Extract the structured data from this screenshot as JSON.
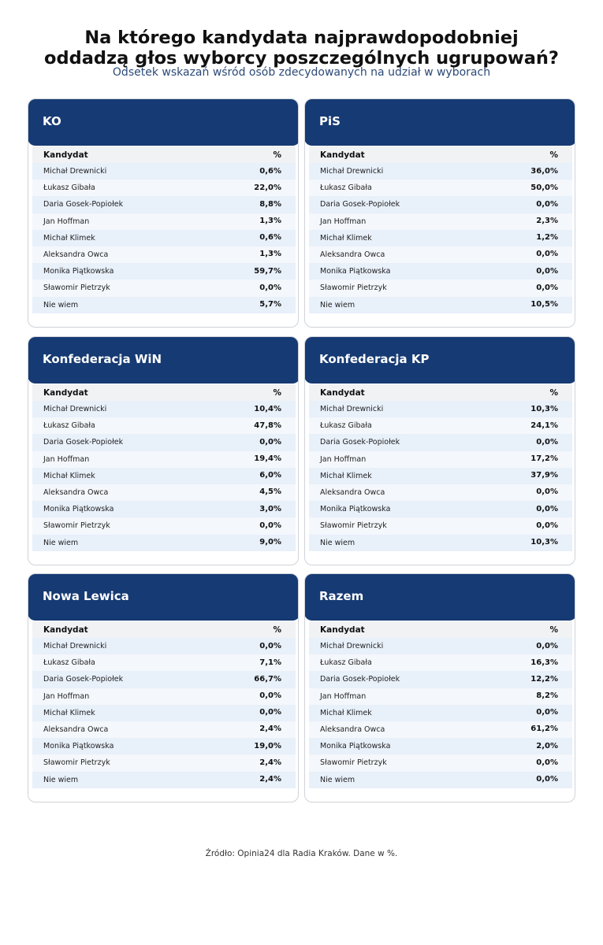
{
  "title_line1": "Na którego kandydata najprawdopodobniej",
  "title_line2": "oddadzą głos wyborcy poszczególnych ugrupowań?",
  "subtitle": "Odsetek wskazań wśród osób zdecydowanych na udział w wyborach",
  "source": "Źródło: Opinia24 dla Radia Kraków. Dane w %.",
  "colors": {
    "header": "#163a73",
    "accent": "#2f86dc",
    "row_a": "#e8f0fa",
    "row_b": "#f4f7fb"
  },
  "chart_data": {
    "type": "table",
    "columns": [
      "Kandydat",
      "%"
    ],
    "candidates": [
      "Michał Drewnicki",
      "Łukasz Gibała",
      "Daria Gosek-Popiołek",
      "Jan Hoffman",
      "Michał Klimek",
      "Aleksandra Owca",
      "Monika Piątkowska",
      "Sławomir Pietrzyk",
      "Nie wiem"
    ],
    "groups": [
      {
        "name": "KO",
        "values": [
          "0,6%",
          "22,0%",
          "8,8%",
          "1,3%",
          "0,6%",
          "1,3%",
          "59,7%",
          "0,0%",
          "5,7%"
        ]
      },
      {
        "name": "PiS",
        "values": [
          "36,0%",
          "50,0%",
          "0,0%",
          "2,3%",
          "1,2%",
          "0,0%",
          "0,0%",
          "0,0%",
          "10,5%"
        ]
      },
      {
        "name": "Konfederacja WiN",
        "values": [
          "10,4%",
          "47,8%",
          "0,0%",
          "19,4%",
          "6,0%",
          "4,5%",
          "3,0%",
          "0,0%",
          "9,0%"
        ]
      },
      {
        "name": "Konfederacja KP",
        "values": [
          "10,3%",
          "24,1%",
          "0,0%",
          "17,2%",
          "37,9%",
          "0,0%",
          "0,0%",
          "0,0%",
          "10,3%"
        ]
      },
      {
        "name": "Nowa Lewica",
        "values": [
          "0,0%",
          "7,1%",
          "66,7%",
          "0,0%",
          "0,0%",
          "2,4%",
          "19,0%",
          "2,4%",
          "2,4%"
        ]
      },
      {
        "name": "Razem",
        "values": [
          "0,0%",
          "16,3%",
          "12,2%",
          "8,2%",
          "0,0%",
          "61,2%",
          "2,0%",
          "0,0%",
          "0,0%"
        ]
      }
    ]
  }
}
